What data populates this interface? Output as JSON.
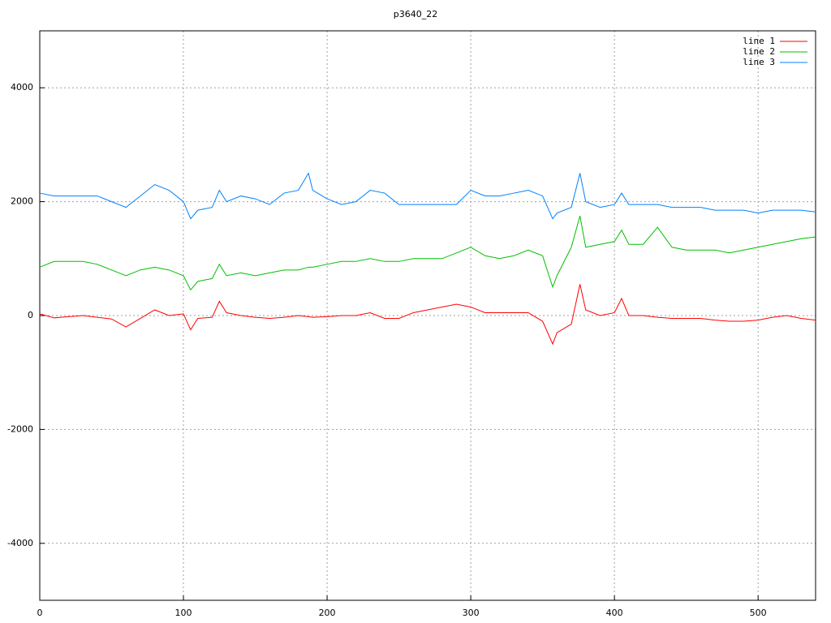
{
  "chart_data": {
    "type": "line",
    "title": "p3640_22",
    "x": [
      0,
      10,
      20,
      30,
      40,
      50,
      60,
      70,
      80,
      90,
      100,
      105,
      110,
      120,
      125,
      130,
      140,
      150,
      160,
      170,
      180,
      187,
      190,
      200,
      210,
      220,
      230,
      240,
      250,
      260,
      270,
      280,
      290,
      300,
      310,
      320,
      330,
      340,
      350,
      357,
      360,
      370,
      376,
      380,
      390,
      400,
      405,
      410,
      420,
      430,
      440,
      450,
      460,
      470,
      480,
      490,
      500,
      510,
      520,
      530,
      540
    ],
    "series": [
      {
        "name": "line 1",
        "color": "#ff0000",
        "values": [
          30,
          -40,
          -20,
          0,
          -30,
          -60,
          -200,
          -50,
          100,
          0,
          30,
          -250,
          -50,
          -30,
          250,
          50,
          0,
          -30,
          -50,
          -30,
          0,
          -20,
          -30,
          -20,
          0,
          0,
          50,
          -50,
          -50,
          50,
          100,
          150,
          200,
          150,
          50,
          50,
          50,
          50,
          -100,
          -500,
          -300,
          -150,
          550,
          100,
          0,
          50,
          300,
          0,
          0,
          -30,
          -50,
          -50,
          -50,
          -80,
          -100,
          -100,
          -80,
          -30,
          0,
          -50,
          -80
        ]
      },
      {
        "name": "line 2",
        "color": "#00c000",
        "values": [
          850,
          950,
          950,
          950,
          900,
          800,
          700,
          800,
          850,
          800,
          700,
          450,
          600,
          650,
          900,
          700,
          750,
          700,
          750,
          800,
          800,
          850,
          850,
          900,
          950,
          950,
          1000,
          950,
          950,
          1000,
          1000,
          1000,
          1100,
          1200,
          1050,
          1000,
          1050,
          1150,
          1050,
          500,
          700,
          1200,
          1750,
          1200,
          1250,
          1300,
          1500,
          1250,
          1250,
          1550,
          1200,
          1150,
          1150,
          1150,
          1100,
          1150,
          1200,
          1250,
          1300,
          1350,
          1380
        ]
      },
      {
        "name": "line 3",
        "color": "#0080ff",
        "values": [
          2150,
          2100,
          2100,
          2100,
          2100,
          2000,
          1900,
          2100,
          2300,
          2200,
          2000,
          1700,
          1850,
          1900,
          2200,
          2000,
          2100,
          2050,
          1950,
          2150,
          2200,
          2500,
          2200,
          2050,
          1950,
          2000,
          2200,
          2150,
          1950,
          1950,
          1950,
          1950,
          1950,
          2200,
          2100,
          2100,
          2150,
          2200,
          2100,
          1700,
          1800,
          1900,
          2500,
          2000,
          1900,
          1950,
          2150,
          1950,
          1950,
          1950,
          1900,
          1900,
          1900,
          1850,
          1850,
          1850,
          1800,
          1850,
          1850,
          1850,
          1820
        ]
      }
    ],
    "xlim": [
      0,
      540
    ],
    "ylim": [
      -5000,
      5000
    ],
    "xticks": [
      0,
      100,
      200,
      300,
      400,
      500
    ],
    "yticks": [
      -4000,
      -2000,
      0,
      2000,
      4000
    ],
    "grid": true,
    "legend": "top-right"
  }
}
